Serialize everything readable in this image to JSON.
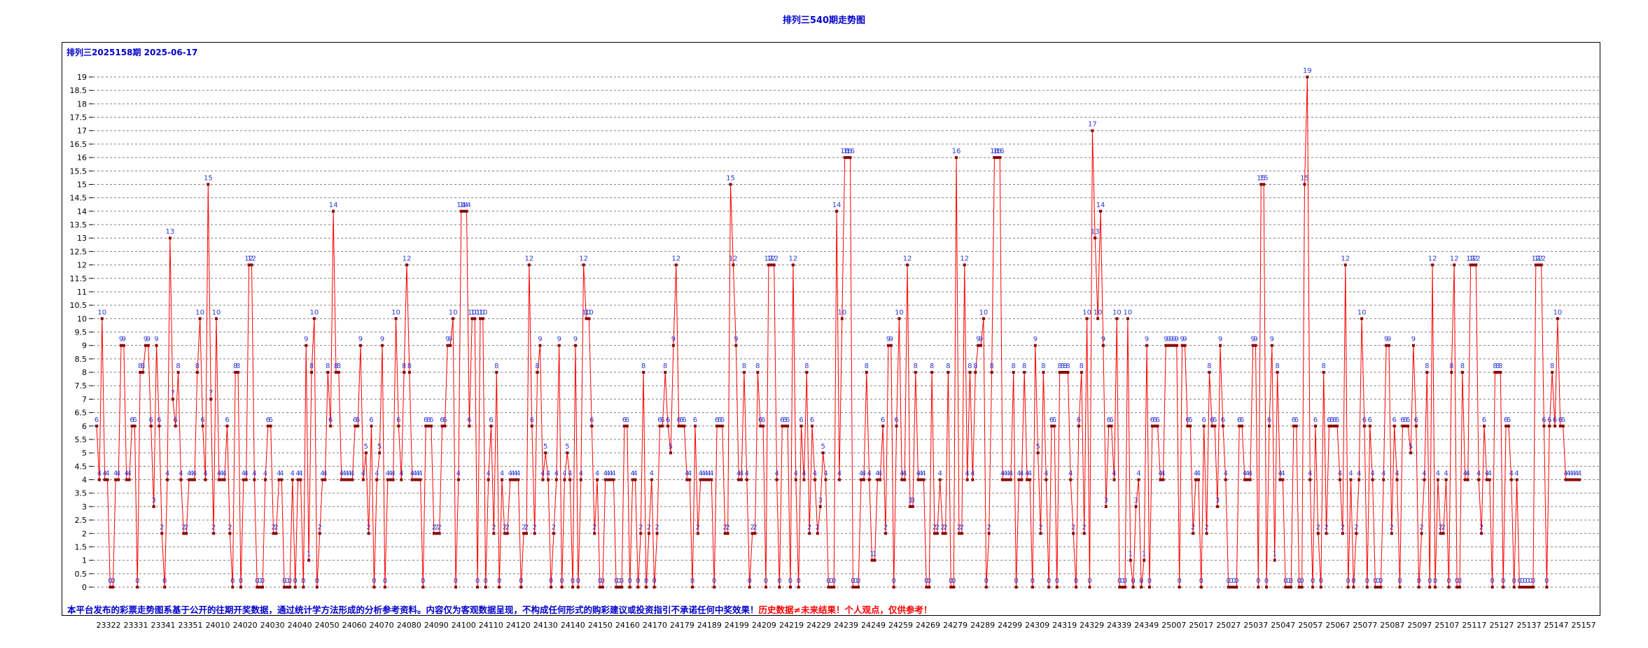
{
  "title": "排列三540期走势图",
  "subtitle": "排列三2025158期 2025-06-17",
  "disclaimer": {
    "part1": "本平台发布的彩票走势图系基于公开的往期开奖数据，通过统计学方法形成的分析参考资料。内容仅为客观数据呈现，不构成任何形式的购彩建议或投资指引不承诺任何中奖效果！",
    "part2": "历史数据≠未来结果！个人观点，仅供参考！"
  },
  "colors": {
    "line": "#ff0000",
    "marker": "#8b0000",
    "label": "#2b36d9",
    "grid": "#808080",
    "text": "#0000cc"
  },
  "chart_data": {
    "type": "line",
    "title": "排列三540期走势图",
    "ylim": [
      0,
      19.5
    ],
    "yticks": [
      "0",
      "0.5",
      "1",
      "1.5",
      "2",
      "2.5",
      "3",
      "3.5",
      "4",
      "4.5",
      "5",
      "5.5",
      "6",
      "6.5",
      "7",
      "7.5",
      "8",
      "8.5",
      "9",
      "9.5",
      "10",
      "10.5",
      "11",
      "11.5",
      "12",
      "12.5",
      "13",
      "13.5",
      "14",
      "14.5",
      "15",
      "15.5",
      "16",
      "16.5",
      "17",
      "17.5",
      "18",
      "18.5",
      "19"
    ],
    "xtick_labels": [
      "23322",
      "23331",
      "23341",
      "23351",
      "24010",
      "24020",
      "24030",
      "24040",
      "24050",
      "24060",
      "24070",
      "24080",
      "24090",
      "24100",
      "24110",
      "24120",
      "24130",
      "24140",
      "24150",
      "24160",
      "24170",
      "24179",
      "24189",
      "24199",
      "24209",
      "24219",
      "24229",
      "24239",
      "24249",
      "24259",
      "24269",
      "24279",
      "24289",
      "24299",
      "24309",
      "24319",
      "24329",
      "24339",
      "24349",
      "25007",
      "25017",
      "25027",
      "25037",
      "25047",
      "25057",
      "25067",
      "25077",
      "25087",
      "25097",
      "25107",
      "25117",
      "25127",
      "25137",
      "25147",
      "25157"
    ],
    "grid": true,
    "series": [
      {
        "values": [
          6,
          4,
          10,
          4,
          4,
          0,
          0,
          4,
          4,
          9,
          9,
          4,
          4,
          6,
          6,
          0,
          8,
          8,
          9,
          9,
          6,
          3,
          9,
          6,
          2,
          0,
          4,
          13,
          7,
          6,
          8,
          4,
          2,
          2,
          4,
          4,
          4,
          8,
          10,
          6,
          4,
          15,
          7,
          2,
          10,
          4,
          4,
          4,
          6,
          2,
          0,
          8,
          8,
          0,
          4,
          4,
          12,
          12,
          4,
          0,
          0,
          0,
          4,
          6,
          6,
          2,
          2,
          4,
          4,
          0,
          0,
          0,
          4,
          0,
          4,
          4,
          0,
          9,
          1,
          8,
          10,
          0,
          2,
          4,
          4,
          8,
          6,
          14,
          8,
          8,
          4,
          4,
          4,
          4,
          4,
          6,
          6,
          9,
          4,
          5,
          2,
          6,
          0,
          4,
          5,
          9,
          0,
          4,
          4,
          4,
          10,
          6,
          4,
          8,
          12,
          8,
          4,
          4,
          4,
          4,
          0,
          6,
          6,
          6,
          2,
          2,
          2,
          6,
          6,
          9,
          9,
          10,
          0,
          4,
          14,
          14,
          14,
          6,
          10,
          10,
          0,
          10,
          10,
          0,
          4,
          6,
          2,
          8,
          0,
          4,
          2,
          2,
          4,
          4,
          4,
          4,
          0,
          2,
          2,
          12,
          6,
          2,
          8,
          9,
          4,
          5,
          4,
          0,
          2,
          4,
          9,
          0,
          4,
          5,
          4,
          0,
          9,
          0,
          4,
          12,
          10,
          10,
          6,
          2,
          4,
          0,
          0,
          4,
          4,
          4,
          4,
          0,
          0,
          0,
          6,
          6,
          0,
          4,
          4,
          0,
          2,
          8,
          0,
          2,
          4,
          0,
          2,
          6,
          6,
          8,
          6,
          5,
          9,
          12,
          6,
          6,
          6,
          4,
          4,
          0,
          6,
          2,
          4,
          4,
          4,
          4,
          4,
          0,
          6,
          6,
          6,
          2,
          2,
          15,
          12,
          9,
          4,
          4,
          8,
          4,
          0,
          2,
          2,
          8,
          6,
          6,
          0,
          12,
          12,
          12,
          4,
          0,
          6,
          6,
          6,
          0,
          12,
          4,
          0,
          6,
          4,
          8,
          2,
          6,
          4,
          2,
          3,
          5,
          4,
          0,
          0,
          0,
          14,
          4,
          10,
          16,
          16,
          16,
          0,
          0,
          0,
          4,
          4,
          8,
          4,
          1,
          1,
          4,
          4,
          6,
          2,
          9,
          9,
          0,
          6,
          10,
          4,
          4,
          12,
          3,
          3,
          8,
          4,
          4,
          4,
          0,
          0,
          8,
          2,
          2,
          4,
          2,
          2,
          8,
          0,
          0,
          16,
          2,
          2,
          12,
          4,
          8,
          4,
          8,
          9,
          9,
          10,
          0,
          2,
          8,
          16,
          16,
          16,
          4,
          4,
          4,
          4,
          8,
          0,
          4,
          4,
          8,
          4,
          4,
          0,
          9,
          5,
          2,
          8,
          4,
          0,
          6,
          6,
          0,
          8,
          8,
          8,
          8,
          4,
          2,
          0,
          6,
          8,
          2,
          10,
          0,
          17,
          13,
          10,
          14,
          9,
          3,
          6,
          6,
          4,
          10,
          0,
          0,
          0,
          10,
          1,
          0,
          3,
          4,
          0,
          1,
          9,
          0,
          6,
          6,
          6,
          4,
          4,
          9,
          9,
          9,
          9,
          9,
          0,
          9,
          9,
          6,
          6,
          2,
          4,
          4,
          0,
          6,
          2,
          8,
          6,
          6,
          3,
          9,
          6,
          4,
          0,
          0,
          0,
          0,
          6,
          6,
          4,
          4,
          4,
          9,
          9,
          0,
          15,
          15,
          0,
          6,
          9,
          1,
          8,
          4,
          4,
          0,
          0,
          0,
          6,
          6,
          0,
          0,
          15,
          19,
          4,
          0,
          6,
          2,
          0,
          8,
          2,
          6,
          6,
          6,
          6,
          4,
          2,
          12,
          0,
          4,
          0,
          2,
          4,
          10,
          6,
          0,
          6,
          4,
          0,
          0,
          0,
          4,
          9,
          9,
          2,
          6,
          4,
          0,
          6,
          6,
          6,
          5,
          9,
          6,
          0,
          2,
          4,
          8,
          0,
          12,
          0,
          4,
          2,
          2,
          4,
          0,
          8,
          12,
          0,
          0,
          8,
          4,
          4,
          12,
          12,
          12,
          4,
          2,
          6,
          4,
          4,
          0,
          8,
          8,
          8,
          0,
          6,
          6,
          4,
          0,
          4,
          0,
          0,
          0,
          0,
          0,
          0,
          12,
          12,
          12,
          6,
          0,
          6,
          8,
          6,
          10,
          6,
          6,
          4,
          4,
          4,
          4,
          4,
          4
        ]
      }
    ]
  }
}
